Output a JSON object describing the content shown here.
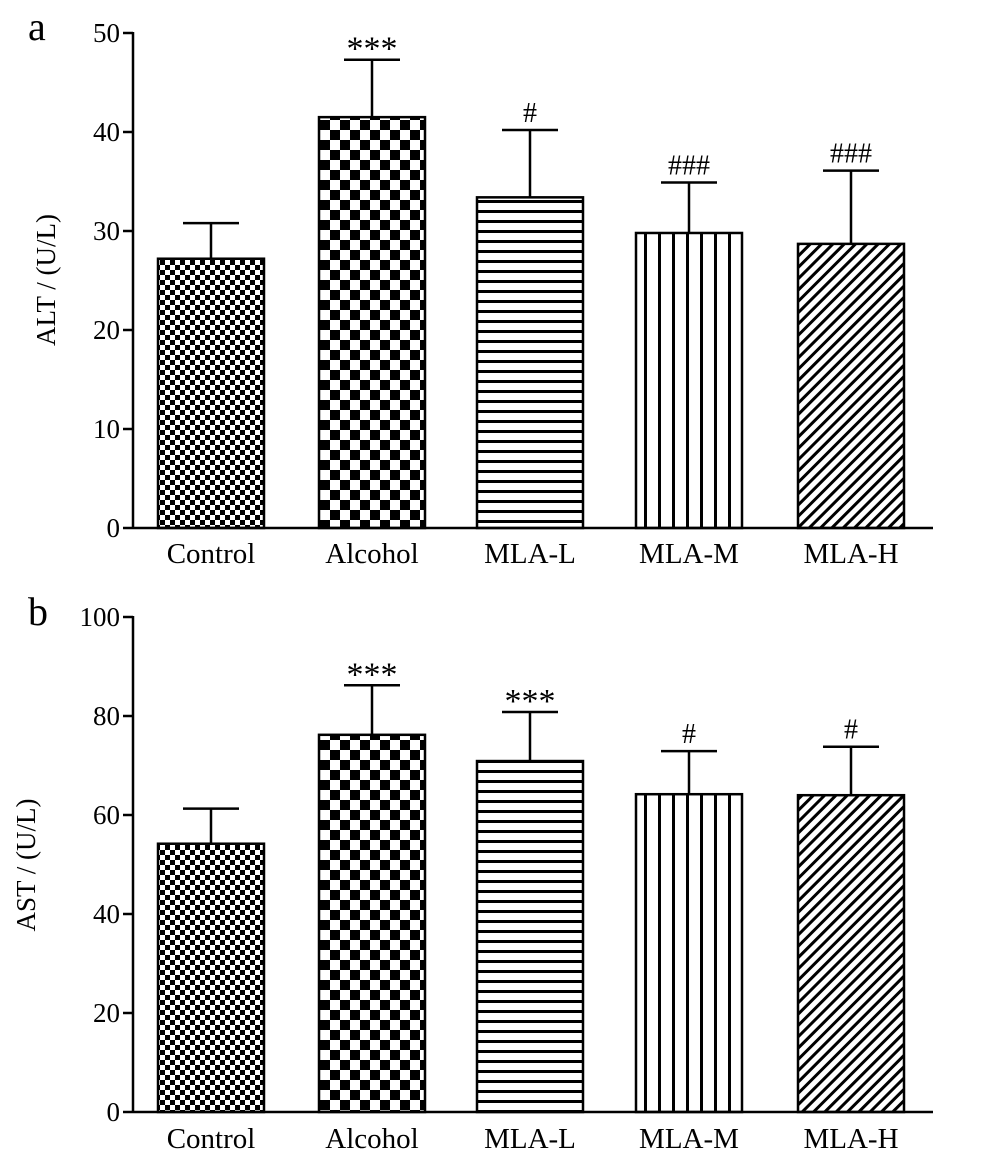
{
  "chart_data": [
    {
      "type": "bar",
      "panel": "a",
      "ylabel": "ALT / (U/L)",
      "ylim": [
        0,
        50
      ],
      "yticks": [
        0,
        10,
        20,
        30,
        40,
        50
      ],
      "categories": [
        "Control",
        "Alcohol",
        "MLA-L",
        "MLA-M",
        "MLA-H"
      ],
      "values": [
        27.2,
        41.5,
        33.4,
        29.8,
        28.7
      ],
      "errors": [
        3.6,
        5.8,
        6.8,
        5.1,
        7.4
      ],
      "annotations": [
        "",
        "***",
        "#",
        "###",
        "###"
      ],
      "patterns": [
        "checker-small",
        "checker-large",
        "horizontal-lines",
        "vertical-lines",
        "diagonal-lines"
      ]
    },
    {
      "type": "bar",
      "panel": "b",
      "ylabel": "AST / (U/L)",
      "ylim": [
        0,
        100
      ],
      "yticks": [
        0,
        20,
        40,
        60,
        80,
        100
      ],
      "categories": [
        "Control",
        "Alcohol",
        "MLA-L",
        "MLA-M",
        "MLA-H"
      ],
      "values": [
        54.2,
        76.2,
        70.9,
        64.2,
        64.0
      ],
      "errors": [
        7.1,
        10.0,
        9.9,
        8.7,
        9.8
      ],
      "annotations": [
        "",
        "***",
        "***",
        "#",
        "#"
      ],
      "patterns": [
        "checker-small",
        "checker-large",
        "horizontal-lines",
        "vertical-lines",
        "diagonal-lines"
      ]
    }
  ]
}
